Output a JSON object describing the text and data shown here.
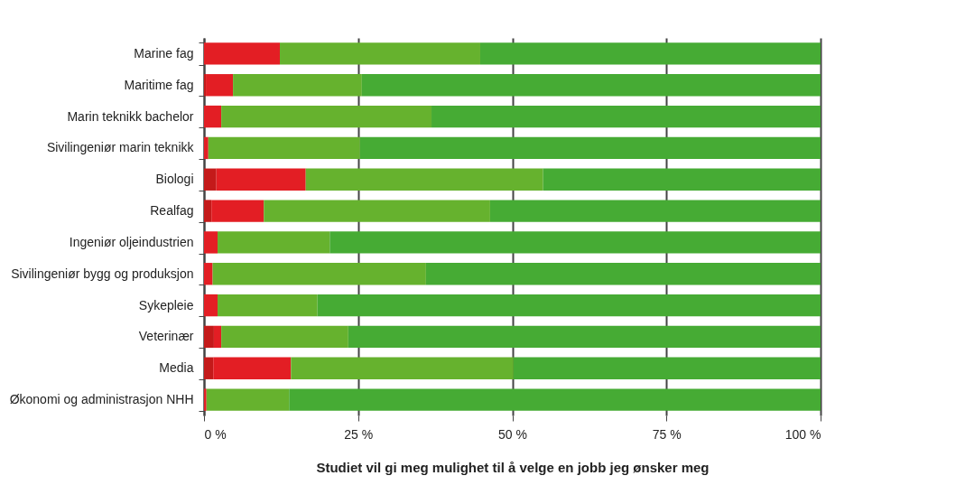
{
  "chart_data": {
    "type": "bar",
    "orientation": "horizontal",
    "stacked": true,
    "xlabel": "Studiet vil gi meg mulighet til å velge en jobb jeg ønsker meg",
    "categories": [
      "Marine fag",
      "Maritime fag",
      "Marin teknikk bachelor",
      "Sivilingeniør marin teknikk",
      "Biologi",
      "Realfag",
      "Ingeniør oljeindustrien",
      "Sivilingeniør bygg og produksjon",
      "Sykepleie",
      "Veterinær",
      "Media",
      "Økonomi og administrasjon NHH"
    ],
    "series": [
      {
        "color": "#c41a1a",
        "values": [
          0,
          0.3,
          0,
          0,
          2.0,
          1.2,
          0,
          0,
          0,
          1.6,
          1.5,
          0
        ]
      },
      {
        "color": "#e31e24",
        "values": [
          12.3,
          4.4,
          2.8,
          0.7,
          14.5,
          8.5,
          2.2,
          1.4,
          2.2,
          1.2,
          12.6,
          0.4
        ]
      },
      {
        "color": "#66b22e",
        "values": [
          32.5,
          20.9,
          34.1,
          24.6,
          38.5,
          36.7,
          18.2,
          34.6,
          16.2,
          20.6,
          36.1,
          13.4
        ]
      },
      {
        "color": "#46ab34",
        "values": [
          55.2,
          74.4,
          63.1,
          74.7,
          45.0,
          53.6,
          79.6,
          64.0,
          81.6,
          76.6,
          49.8,
          86.2
        ]
      }
    ],
    "xlim": [
      0,
      100
    ],
    "xticks": [
      {
        "value": 0,
        "label": "0 %"
      },
      {
        "value": 25,
        "label": "25 %"
      },
      {
        "value": 50,
        "label": "50 %"
      },
      {
        "value": 75,
        "label": "75 %"
      },
      {
        "value": 100,
        "label": "100 %"
      }
    ],
    "grid": "x",
    "legend": false
  }
}
